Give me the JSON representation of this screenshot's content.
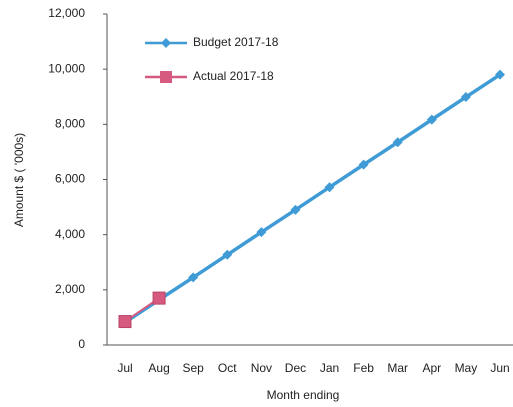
{
  "chart_data": {
    "type": "line",
    "y_label": "Amount $ ( '000s)",
    "x_label": "Month ending",
    "categories": [
      "Jul",
      "Aug",
      "Sep",
      "Oct",
      "Nov",
      "Dec",
      "Jan",
      "Feb",
      "Mar",
      "Apr",
      "May",
      "Jun"
    ],
    "series": [
      {
        "name": "Budget 2017-18",
        "color": "#3f9bd6",
        "marker": "diamond",
        "values": [
          820,
          1640,
          2450,
          3270,
          4090,
          4900,
          5720,
          6540,
          7350,
          8170,
          8990,
          9800
        ]
      },
      {
        "name": "Actual 2017-18",
        "color": "#d65a80",
        "marker": "square",
        "values": [
          850,
          1700,
          null,
          null,
          null,
          null,
          null,
          null,
          null,
          null,
          null,
          null
        ]
      }
    ],
    "ylim": [
      0,
      12000
    ],
    "yticks": [
      0,
      {
        "value": 2000,
        "label": "2,000"
      },
      {
        "value": 4000,
        "label": "4,000"
      },
      {
        "value": 6000,
        "label": "6,000"
      },
      {
        "value": 8000,
        "label": "8,000"
      },
      {
        "value": 10000,
        "label": "10,000"
      },
      {
        "value": 12000,
        "label": "12,000"
      }
    ],
    "grid": false,
    "legend": "top-left"
  }
}
